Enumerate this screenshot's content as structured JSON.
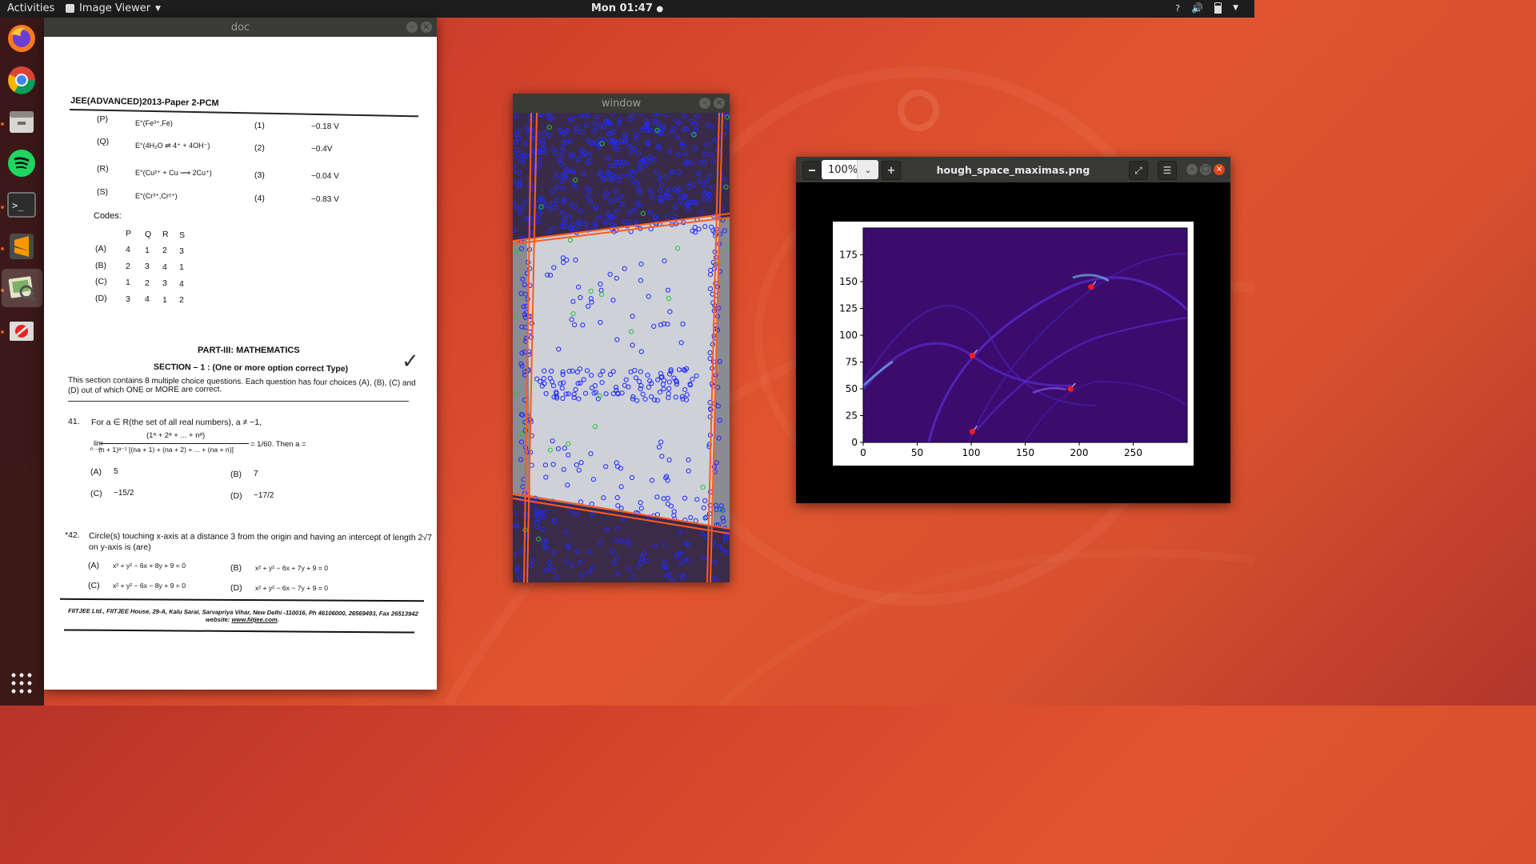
{
  "topbar": {
    "activities": "Activities",
    "app_menu": "Image Viewer",
    "clock": "Mon 01:47"
  },
  "dock": {
    "items": [
      "firefox",
      "chrome",
      "files",
      "spotify",
      "terminal",
      "sublime-text",
      "image-viewer",
      "network"
    ],
    "show_apps": "show-apps"
  },
  "doc_window": {
    "title": "doc",
    "paper": {
      "header": "JEE(ADVANCED)2013-Paper 2-PCM",
      "list_rows": [
        {
          "letter": "(P)",
          "expr": "E°(Fe³⁺,Fe)",
          "num": "(1)",
          "value": "−0.18 V"
        },
        {
          "letter": "(Q)",
          "expr": "E°(4H₂O ⇌ 4⁺ + 4OH⁻)",
          "num": "(2)",
          "value": "−0.4V"
        },
        {
          "letter": "(R)",
          "expr": "E°(Cu²⁺ + Cu ⟶ 2Cu⁺)",
          "num": "(3)",
          "value": "−0.04 V"
        },
        {
          "letter": "(S)",
          "expr": "E°(Cr³⁺,Cr²⁺)",
          "num": "(4)",
          "value": "−0.83 V"
        }
      ],
      "codes_label": "Codes:",
      "codes_header": [
        "P",
        "Q",
        "R",
        "S"
      ],
      "codes": [
        {
          "opt": "(A)",
          "vals": [
            "4",
            "1",
            "2",
            "3"
          ]
        },
        {
          "opt": "(B)",
          "vals": [
            "2",
            "3",
            "4",
            "1"
          ]
        },
        {
          "opt": "(C)",
          "vals": [
            "1",
            "2",
            "3",
            "4"
          ]
        },
        {
          "opt": "(D)",
          "vals": [
            "3",
            "4",
            "1",
            "2"
          ]
        }
      ],
      "part_title": "PART-III: MATHEMATICS",
      "section_title": "SECTION – 1 : (One or more option correct Type)",
      "section_desc_1": "This section contains 8 multiple choice questions. Each question has four choices (A), (B), (C) and",
      "section_desc_2": "(D) out of which ONE or MORE are correct.",
      "q41_num": "41.",
      "q41_text": "For a ∈ R(the set of all real numbers), a ≠ −1,",
      "q41_numerator": "(1ᵃ + 2ᵃ + ... + nᵃ)",
      "q41_lim": "lim",
      "q41_lim_sub": "n→∞",
      "q41_denominator": "(n + 1)ᵃ⁻¹ [(na + 1) + (na + 2) + ... + (na + n)]",
      "q41_rhs": "= 1/60. Then a =",
      "q41_options": [
        {
          "opt": "(A)",
          "val": "5"
        },
        {
          "opt": "(B)",
          "val": "7"
        },
        {
          "opt": "(C)",
          "val": "−15/2"
        },
        {
          "opt": "(D)",
          "val": "−17/2"
        }
      ],
      "q42_num": "*42.",
      "q42_text": "Circle(s) touching x-axis at a distance 3 from the origin and having an intercept of length 2√7",
      "q42_text2": "on y-axis is (are)",
      "q42_options": [
        {
          "opt": "(A)",
          "val": "x² + y² − 6x + 8y + 9 = 0"
        },
        {
          "opt": "(B)",
          "val": "x² + y² − 6x + 7y + 9 = 0"
        },
        {
          "opt": "(C)",
          "val": "x² + y² − 6x − 8y + 9 = 0"
        },
        {
          "opt": "(D)",
          "val": "x² + y² − 6x − 7y + 9 = 0"
        }
      ],
      "footer_1": "FIITJEE Ltd., FIITJEE House, 29-A, Kalu Sarai, Sarvapriya Vihar, New Delhi -110016, Ph 46106000, 26569493, Fax 26513942",
      "footer_2_prefix": "website: ",
      "footer_2_link": "www.fiitjee.com",
      "footer_2_suffix": "."
    }
  },
  "cv_window": {
    "title": "window"
  },
  "viewer_window": {
    "zoom": "100%",
    "title": "hough_space_maximas.png",
    "colors": {
      "plot_bg": "#3b0c6e",
      "maxima": "#ff1b1b"
    }
  },
  "chart_data": {
    "type": "heatmap",
    "title": "",
    "xlabel": "",
    "ylabel": "",
    "xlim": [
      0,
      300
    ],
    "ylim": [
      0,
      200
    ],
    "xticks": [
      0,
      50,
      100,
      150,
      200,
      250
    ],
    "yticks": [
      0,
      25,
      50,
      75,
      100,
      125,
      150,
      175
    ],
    "maxima_points": [
      {
        "x": 101,
        "y": 10
      },
      {
        "x": 101,
        "y": 81
      },
      {
        "x": 192,
        "y": 50
      },
      {
        "x": 211,
        "y": 145
      }
    ]
  }
}
